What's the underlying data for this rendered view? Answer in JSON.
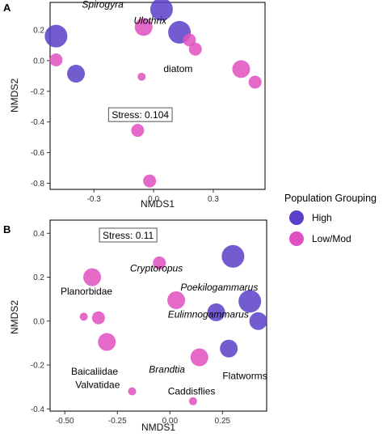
{
  "colors": {
    "high": "#5b3fc8",
    "low_mod": "#e04fc0"
  },
  "legend": {
    "title": "Population Grouping",
    "items": [
      {
        "label": "High",
        "group": "high"
      },
      {
        "label": "Low/Mod",
        "group": "low_mod"
      }
    ]
  },
  "chart_data": [
    {
      "panel": "A",
      "type": "scatter",
      "xlabel": "NMDS1",
      "ylabel": "NMDS2",
      "xlim": [
        -0.52,
        0.56
      ],
      "ylim": [
        -0.84,
        0.38
      ],
      "xticks": [
        -0.3,
        0.0,
        0.3
      ],
      "xtick_labels": [
        "-0.3",
        "0.0",
        "0.3"
      ],
      "yticks": [
        -0.8,
        -0.6,
        -0.4,
        -0.2,
        0.0,
        0.2
      ],
      "ytick_labels": [
        "-0.8",
        "-0.6",
        "-0.4",
        "-0.2",
        "0.0",
        "0.2"
      ],
      "stress_label": "Stress: 0.104",
      "stress_at": {
        "x": -0.21,
        "y": -0.355
      },
      "points": [
        {
          "x": 0.04,
          "y": 0.335,
          "size": 3,
          "group": "high"
        },
        {
          "x": -0.49,
          "y": 0.16,
          "size": 3,
          "group": "high"
        },
        {
          "x": 0.13,
          "y": 0.185,
          "size": 3,
          "group": "high"
        },
        {
          "x": -0.39,
          "y": -0.085,
          "size": 2,
          "group": "high"
        },
        {
          "x": -0.05,
          "y": 0.22,
          "size": 2,
          "group": "low_mod"
        },
        {
          "x": 0.18,
          "y": 0.135,
          "size": 1,
          "group": "low_mod"
        },
        {
          "x": 0.21,
          "y": 0.075,
          "size": 1,
          "group": "low_mod"
        },
        {
          "x": -0.49,
          "y": 0.005,
          "size": 1,
          "group": "low_mod"
        },
        {
          "x": 0.44,
          "y": -0.055,
          "size": 2,
          "group": "low_mod"
        },
        {
          "x": 0.51,
          "y": -0.14,
          "size": 1,
          "group": "low_mod"
        },
        {
          "x": -0.06,
          "y": -0.105,
          "size": 0,
          "group": "low_mod"
        },
        {
          "x": -0.08,
          "y": -0.455,
          "size": 1,
          "group": "low_mod"
        },
        {
          "x": -0.02,
          "y": -0.785,
          "size": 1,
          "group": "low_mod"
        }
      ],
      "annotations": [
        {
          "text": "Spirogyra",
          "x": -0.36,
          "y": 0.345,
          "italic": true
        },
        {
          "text": "Ulothrix",
          "x": -0.1,
          "y": 0.24,
          "italic": true
        },
        {
          "text": "diatom",
          "x": 0.05,
          "y": -0.075,
          "italic": false
        }
      ]
    },
    {
      "panel": "B",
      "type": "scatter",
      "xlabel": "NMDS1",
      "ylabel": "NMDS2",
      "xlim": [
        -0.57,
        0.46
      ],
      "ylim": [
        -0.41,
        0.46
      ],
      "xticks": [
        -0.5,
        -0.25,
        0.0,
        0.25
      ],
      "xtick_labels": [
        "-0.50",
        "-0.25",
        "0.00",
        "0.25"
      ],
      "yticks": [
        -0.4,
        -0.2,
        0.0,
        0.2,
        0.4
      ],
      "ytick_labels": [
        "-0.4",
        "-0.2",
        "0.0",
        "0.2",
        "0.4"
      ],
      "stress_label": "Stress: 0.11",
      "stress_at": {
        "x": -0.32,
        "y": 0.39
      },
      "points": [
        {
          "x": 0.3,
          "y": 0.295,
          "size": 3,
          "group": "high"
        },
        {
          "x": 0.38,
          "y": 0.09,
          "size": 3,
          "group": "high"
        },
        {
          "x": 0.22,
          "y": 0.04,
          "size": 2,
          "group": "high"
        },
        {
          "x": 0.42,
          "y": 0.0,
          "size": 2,
          "group": "high"
        },
        {
          "x": 0.28,
          "y": -0.125,
          "size": 2,
          "group": "high"
        },
        {
          "x": -0.05,
          "y": 0.265,
          "size": 1,
          "group": "low_mod"
        },
        {
          "x": -0.37,
          "y": 0.2,
          "size": 2,
          "group": "low_mod"
        },
        {
          "x": 0.03,
          "y": 0.095,
          "size": 2,
          "group": "low_mod"
        },
        {
          "x": -0.41,
          "y": 0.02,
          "size": 0,
          "group": "low_mod"
        },
        {
          "x": -0.34,
          "y": 0.015,
          "size": 1,
          "group": "low_mod"
        },
        {
          "x": -0.3,
          "y": -0.095,
          "size": 2,
          "group": "low_mod"
        },
        {
          "x": 0.14,
          "y": -0.165,
          "size": 2,
          "group": "low_mod"
        },
        {
          "x": -0.18,
          "y": -0.32,
          "size": 0,
          "group": "low_mod"
        },
        {
          "x": 0.11,
          "y": -0.365,
          "size": 0,
          "group": "low_mod"
        }
      ],
      "annotations": [
        {
          "text": "Cryptoropus",
          "x": -0.19,
          "y": 0.225,
          "italic": true
        },
        {
          "text": "Planorbidae",
          "x": -0.52,
          "y": 0.12,
          "italic": false
        },
        {
          "text": "Poekilogammarus",
          "x": 0.05,
          "y": 0.14,
          "italic": true
        },
        {
          "text": "Eulimnogammarus",
          "x": -0.01,
          "y": 0.015,
          "italic": true
        },
        {
          "text": "Brandtia",
          "x": -0.1,
          "y": -0.235,
          "italic": true
        },
        {
          "text": "Flatworms",
          "x": 0.25,
          "y": -0.265,
          "italic": false
        },
        {
          "text": "Baicaliidae",
          "x": -0.47,
          "y": -0.245,
          "italic": false
        },
        {
          "text": "Valvatidae",
          "x": -0.45,
          "y": -0.305,
          "italic": false
        },
        {
          "text": "Caddisflies",
          "x": -0.01,
          "y": -0.335,
          "italic": false
        }
      ]
    }
  ]
}
